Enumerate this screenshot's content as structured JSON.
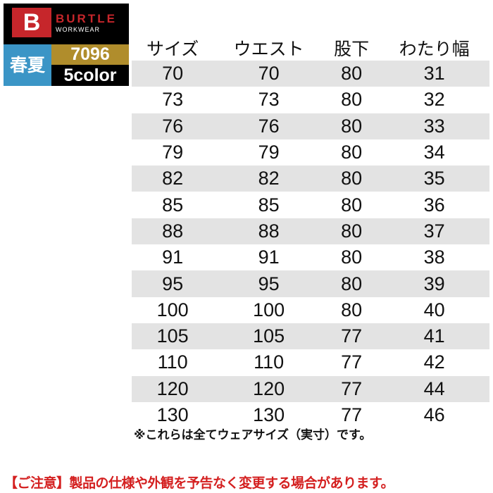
{
  "logo": {
    "mark": "B",
    "brand": "BURTLE",
    "sub": "WORKWEAR",
    "season": "春夏",
    "model": "7096",
    "colors": "5color"
  },
  "table": {
    "headers": [
      "サイズ",
      "ウエスト",
      "股下",
      "わたり幅"
    ],
    "rows": [
      [
        "70",
        "70",
        "80",
        "31"
      ],
      [
        "73",
        "73",
        "80",
        "32"
      ],
      [
        "76",
        "76",
        "80",
        "33"
      ],
      [
        "79",
        "79",
        "80",
        "34"
      ],
      [
        "82",
        "82",
        "80",
        "35"
      ],
      [
        "85",
        "85",
        "80",
        "36"
      ],
      [
        "88",
        "88",
        "80",
        "37"
      ],
      [
        "91",
        "91",
        "80",
        "38"
      ],
      [
        "95",
        "95",
        "80",
        "39"
      ],
      [
        "100",
        "100",
        "80",
        "40"
      ],
      [
        "105",
        "105",
        "77",
        "41"
      ],
      [
        "110",
        "110",
        "77",
        "42"
      ],
      [
        "120",
        "120",
        "77",
        "44"
      ],
      [
        "130",
        "130",
        "77",
        "46"
      ]
    ]
  },
  "note": "※これらは全てウェアサイズ（実寸）です。",
  "warning": "【ご注意】製品の仕様や外観を予告なく変更する場合があります。"
}
